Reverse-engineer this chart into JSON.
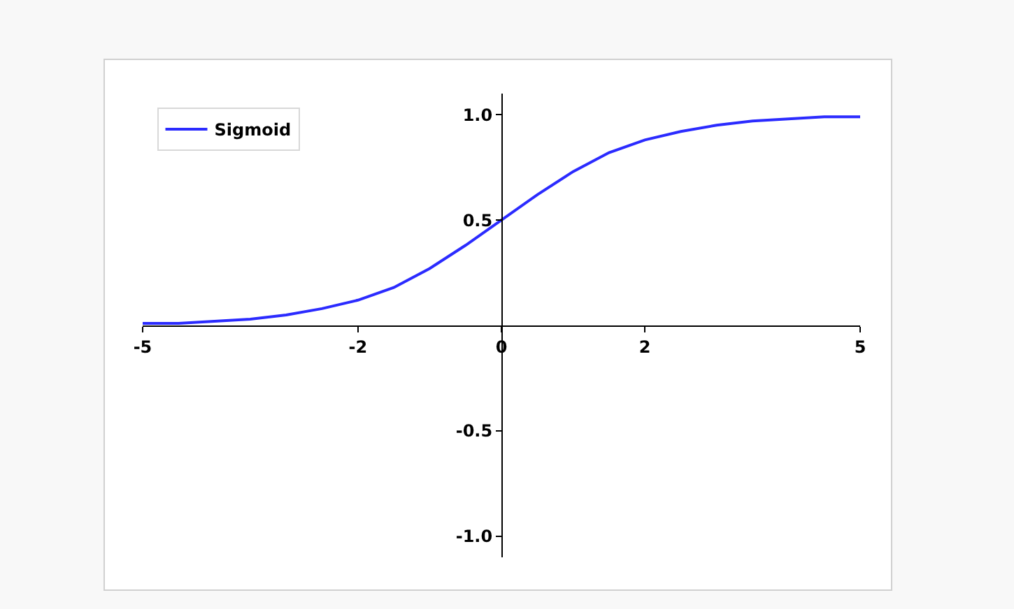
{
  "chart_data": {
    "type": "line",
    "x": [
      -5,
      -4.5,
      -4,
      -3.5,
      -3,
      -2.5,
      -2,
      -1.5,
      -1,
      -0.5,
      0,
      0.5,
      1,
      1.5,
      2,
      2.5,
      3,
      3.5,
      4,
      4.5,
      5
    ],
    "series": [
      {
        "name": "Sigmoid",
        "color": "#2b2bff",
        "values": [
          0.01,
          0.01,
          0.02,
          0.03,
          0.05,
          0.08,
          0.12,
          0.18,
          0.27,
          0.38,
          0.5,
          0.62,
          0.73,
          0.82,
          0.88,
          0.92,
          0.95,
          0.97,
          0.98,
          0.99,
          0.99
        ]
      }
    ],
    "xlim": [
      -5,
      5
    ],
    "ylim": [
      -1.1,
      1.1
    ],
    "xticks": [
      -5,
      -2,
      0,
      2,
      5
    ],
    "yticks": [
      {
        "value": -1,
        "label": "-1.0"
      },
      -0.5,
      0.5,
      {
        "value": 1,
        "label": "1.0"
      }
    ],
    "legend": "top left",
    "grid": false
  }
}
